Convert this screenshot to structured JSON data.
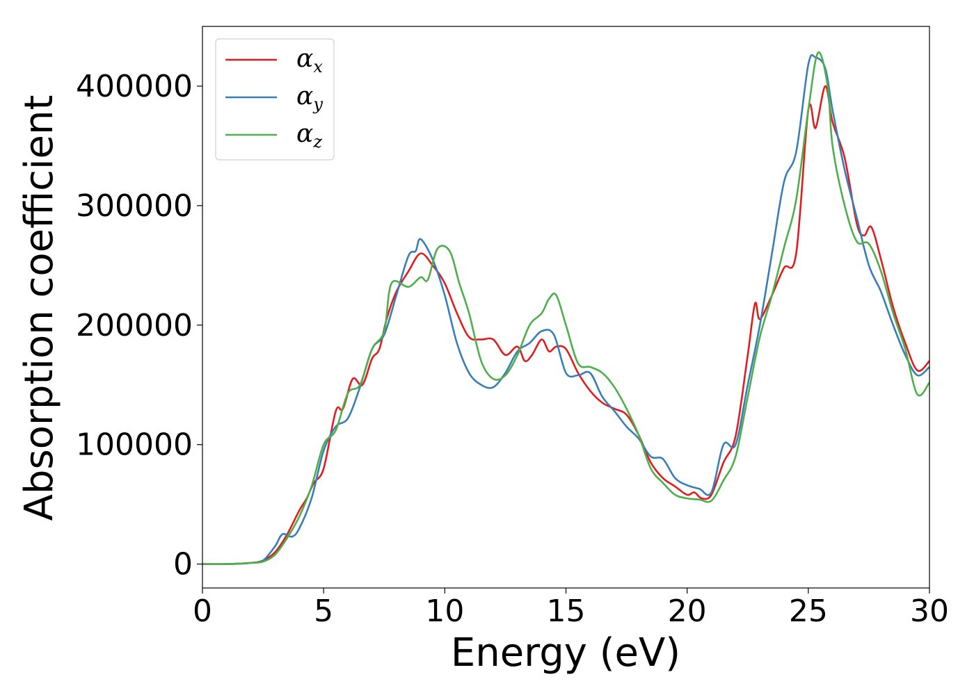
{
  "chart_data": {
    "type": "line",
    "xlabel": "Energy (eV)",
    "ylabel": "Absorption coefficient",
    "xlim": [
      0,
      30
    ],
    "ylim": [
      -20000,
      450000
    ],
    "xticks": [
      0,
      5,
      10,
      15,
      20,
      25,
      30
    ],
    "yticks": [
      0,
      100000,
      200000,
      300000,
      400000
    ],
    "legend_position": "top-left",
    "grid": false,
    "series": [
      {
        "name": "α",
        "subscript": "x",
        "color": "#e41a1c",
        "x": [
          0,
          1,
          2,
          2.5,
          3,
          3.5,
          4,
          4.3,
          4.6,
          5,
          5.5,
          5.8,
          6.2,
          6.6,
          7,
          7.3,
          7.6,
          8,
          8.5,
          9,
          9.5,
          10,
          10.5,
          11,
          11.5,
          12,
          12.5,
          13,
          13.3,
          13.6,
          14,
          14.3,
          14.6,
          15,
          15.5,
          16,
          16.5,
          17,
          17.5,
          18,
          18.5,
          19,
          19.5,
          20,
          20.3,
          20.6,
          21,
          21.5,
          22,
          22.5,
          22.8,
          23,
          23.5,
          24,
          24.5,
          25,
          25.3,
          25.7,
          26,
          26.5,
          27,
          27.3,
          27.6,
          28,
          28.5,
          29,
          29.5,
          30
        ],
        "y": [
          0,
          0,
          1000,
          3000,
          10000,
          25000,
          45000,
          55000,
          68000,
          80000,
          128000,
          130000,
          155000,
          150000,
          172000,
          180000,
          205000,
          228000,
          245000,
          260000,
          250000,
          235000,
          210000,
          190000,
          188000,
          188000,
          175000,
          182000,
          170000,
          175000,
          188000,
          178000,
          182000,
          180000,
          160000,
          145000,
          135000,
          130000,
          125000,
          108000,
          85000,
          72000,
          65000,
          58000,
          60000,
          55000,
          58000,
          85000,
          107000,
          175000,
          218000,
          205000,
          225000,
          248000,
          260000,
          380000,
          365000,
          400000,
          370000,
          340000,
          285000,
          275000,
          282000,
          255000,
          215000,
          185000,
          162000,
          170000
        ]
      },
      {
        "name": "α",
        "subscript": "y",
        "color": "#377eb8",
        "x": [
          0,
          1,
          2,
          2.5,
          3,
          3.3,
          3.7,
          4,
          4.5,
          5,
          5.5,
          6,
          6.5,
          7,
          7.5,
          8,
          8.5,
          8.8,
          9,
          9.5,
          10,
          10.5,
          11,
          11.5,
          12,
          12.5,
          13,
          13.5,
          14,
          14.5,
          15,
          15.5,
          16,
          16.5,
          17,
          17.5,
          18,
          18.5,
          19,
          19.5,
          20,
          20.5,
          21,
          21.5,
          22,
          22.5,
          23,
          23.5,
          24,
          24.5,
          25,
          25.3,
          25.7,
          26,
          26.5,
          27,
          27.5,
          28,
          28.5,
          29,
          29.5,
          30
        ],
        "y": [
          0,
          0,
          1000,
          3000,
          15000,
          25000,
          23000,
          30000,
          55000,
          95000,
          115000,
          122000,
          148000,
          180000,
          192000,
          225000,
          258000,
          262000,
          272000,
          255000,
          225000,
          185000,
          160000,
          150000,
          148000,
          160000,
          178000,
          185000,
          195000,
          192000,
          160000,
          158000,
          160000,
          140000,
          128000,
          115000,
          105000,
          90000,
          88000,
          72000,
          66000,
          63000,
          60000,
          100000,
          100000,
          150000,
          200000,
          260000,
          320000,
          345000,
          418000,
          424000,
          415000,
          380000,
          330000,
          290000,
          250000,
          228000,
          200000,
          175000,
          158000,
          165000
        ]
      },
      {
        "name": "α",
        "subscript": "z",
        "color": "#4daf4a",
        "x": [
          0,
          1,
          2,
          2.5,
          3,
          3.5,
          4,
          4.5,
          5,
          5.5,
          6,
          6.5,
          7,
          7.5,
          7.8,
          8.5,
          9,
          9.3,
          9.7,
          10.2,
          10.6,
          11,
          11.5,
          12,
          12.5,
          13,
          13.5,
          14,
          14.3,
          14.6,
          15,
          15.5,
          16,
          16.5,
          17,
          17.5,
          18,
          18.5,
          19,
          19.5,
          20,
          20.5,
          21,
          21.5,
          22,
          22.5,
          23,
          23.5,
          24,
          24.5,
          25,
          25.4,
          25.8,
          26,
          26.5,
          27,
          27.5,
          28,
          28.5,
          29,
          29.5,
          30
        ],
        "y": [
          0,
          0,
          1000,
          2000,
          8000,
          22000,
          40000,
          65000,
          100000,
          112000,
          143000,
          150000,
          180000,
          195000,
          235000,
          232000,
          240000,
          238000,
          264000,
          262000,
          235000,
          210000,
          170000,
          155000,
          158000,
          175000,
          200000,
          210000,
          222000,
          225000,
          200000,
          168000,
          165000,
          160000,
          148000,
          130000,
          108000,
          80000,
          68000,
          58000,
          55000,
          54000,
          53000,
          70000,
          90000,
          140000,
          190000,
          225000,
          265000,
          305000,
          380000,
          428000,
          400000,
          350000,
          300000,
          270000,
          268000,
          245000,
          210000,
          180000,
          142000,
          152000
        ]
      }
    ]
  }
}
